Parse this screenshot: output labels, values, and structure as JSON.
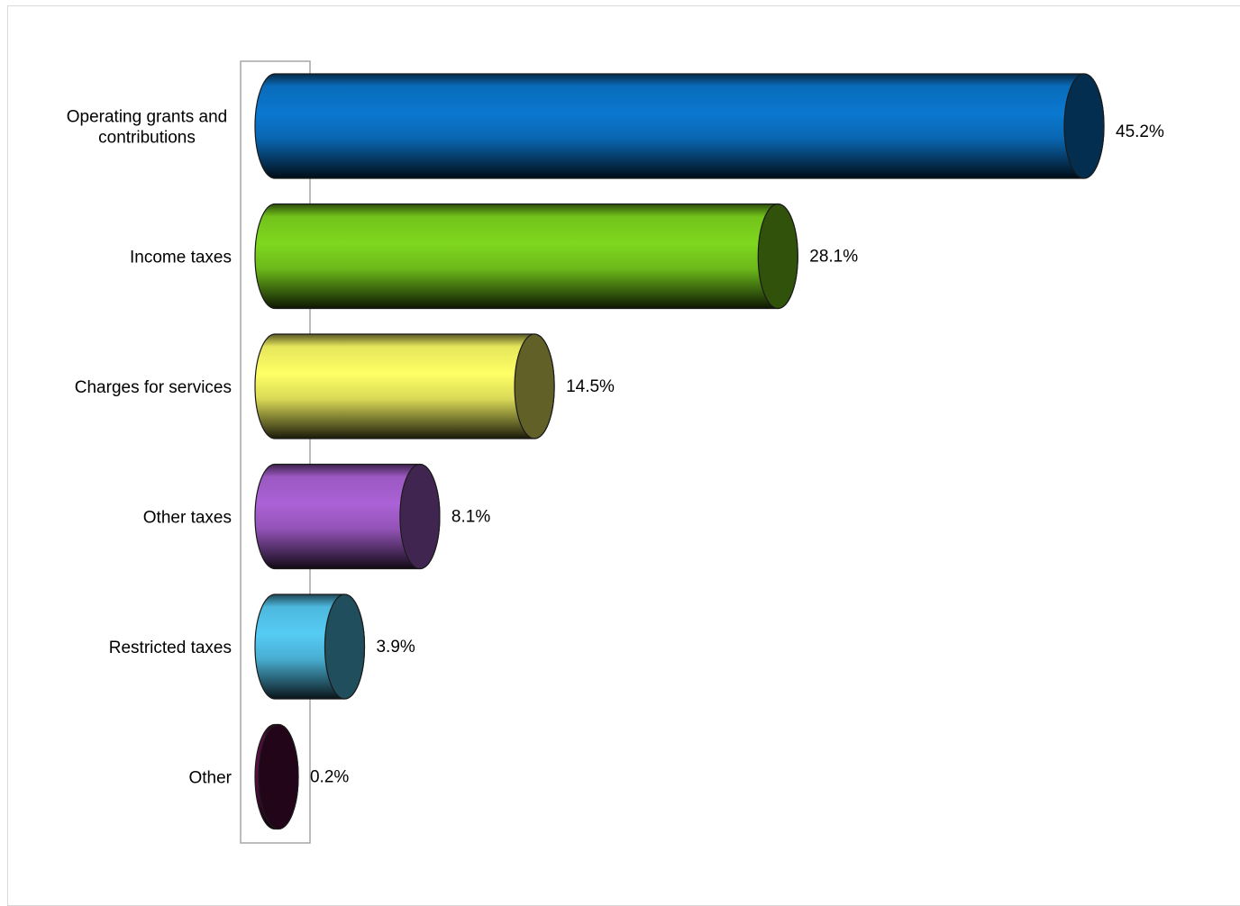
{
  "chart_data": {
    "type": "bar",
    "orientation": "horizontal",
    "style": "3d-cylinder",
    "title": "",
    "xlabel": "",
    "ylabel": "",
    "categories": [
      [
        "Operating grants and",
        "contributions"
      ],
      [
        "Income taxes"
      ],
      [
        "Charges for services"
      ],
      [
        "Other taxes"
      ],
      [
        "Restricted taxes"
      ],
      [
        "Other"
      ]
    ],
    "values": [
      45.2,
      28.1,
      14.5,
      8.1,
      3.9,
      0.2
    ],
    "value_labels": [
      "45.2%",
      "28.1%",
      "14.5%",
      "8.1%",
      "3.9%",
      "0.2%"
    ],
    "unit": "%",
    "xlim": [
      0,
      45.2
    ],
    "grid": false,
    "legend": "none",
    "colors": [
      "#0b78d0",
      "#7fd81e",
      "#ffff66",
      "#ac62d6",
      "#55ccf5",
      "#5c0d45"
    ]
  }
}
